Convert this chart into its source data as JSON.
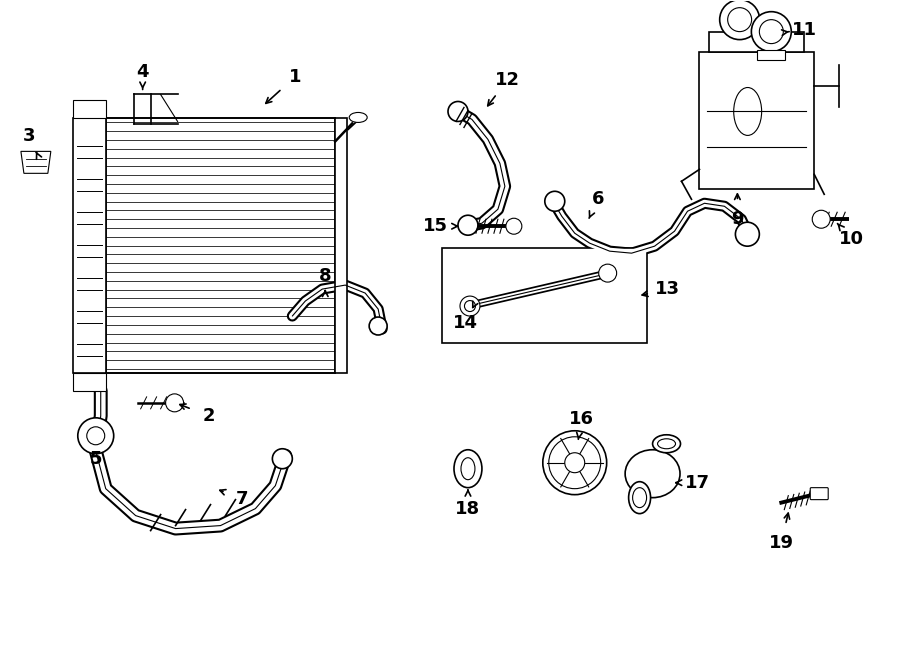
{
  "bg_color": "#ffffff",
  "line_color": "#000000",
  "label_fontsize": 13,
  "fig_width": 9.0,
  "fig_height": 6.61,
  "dpi": 100,
  "xlim": [
    0,
    9.0
  ],
  "ylim": [
    0,
    6.61
  ]
}
